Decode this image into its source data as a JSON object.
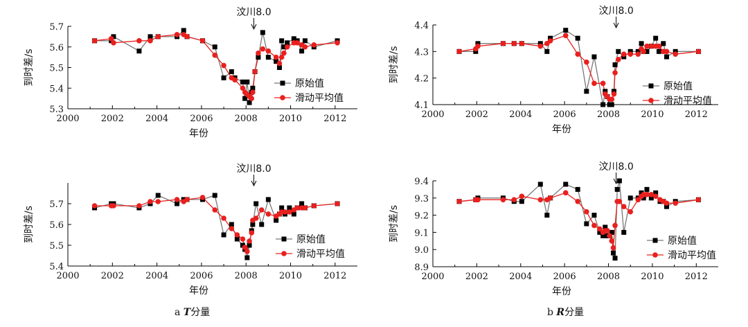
{
  "captions": {
    "a_prefix": "a ",
    "a_italic": "T",
    "a_suffix": "分量",
    "b_prefix": "b ",
    "b_italic": "R",
    "b_suffix": "分量"
  },
  "legend": {
    "raw": "原始值",
    "smooth": "滑动平均值"
  },
  "colors": {
    "raw": "#000000",
    "raw_line": "#777777",
    "smooth": "#e8201e"
  },
  "chart_data": [
    {
      "type": "line",
      "id": "T-top",
      "xlabel": "年份",
      "ylabel": "到时差/s",
      "xlim": [
        2000,
        2013
      ],
      "ylim": [
        5.3,
        5.7
      ],
      "xticks": [
        "2000",
        "2002",
        "2004",
        "2006",
        "2008",
        "2010",
        "2012"
      ],
      "yticks": [
        "5.3",
        "5.4",
        "5.5",
        "5.6",
        "5.7"
      ],
      "annotation": {
        "text": "汶川8.0",
        "x": 2008.35
      },
      "series": [
        {
          "name": "原始值",
          "x": [
            2001.2,
            2001.95,
            2002.05,
            2003.2,
            2003.7,
            2004.05,
            2004.9,
            2005.2,
            2005.35,
            2006.05,
            2006.6,
            2007.0,
            2007.35,
            2007.5,
            2007.85,
            2007.95,
            2008.05,
            2008.15,
            2008.25,
            2008.3,
            2008.4,
            2008.55,
            2008.75,
            2009.0,
            2009.35,
            2009.5,
            2009.6,
            2009.7,
            2009.85,
            2010.15,
            2010.3,
            2010.5,
            2010.65,
            2011.05,
            2012.1
          ],
          "y": [
            5.63,
            5.63,
            5.65,
            5.58,
            5.65,
            5.65,
            5.65,
            5.68,
            5.65,
            5.63,
            5.6,
            5.45,
            5.48,
            5.45,
            5.43,
            5.35,
            5.43,
            5.33,
            5.38,
            5.4,
            5.48,
            5.55,
            5.67,
            5.55,
            5.53,
            5.5,
            5.63,
            5.6,
            5.62,
            5.64,
            5.63,
            5.58,
            5.63,
            5.6,
            5.63
          ]
        },
        {
          "name": "滑动平均值",
          "x": [
            2001.2,
            2001.95,
            2002.05,
            2003.2,
            2003.7,
            2004.05,
            2004.9,
            2005.2,
            2005.35,
            2006.05,
            2006.6,
            2007.0,
            2007.35,
            2007.5,
            2007.85,
            2007.95,
            2008.05,
            2008.15,
            2008.25,
            2008.3,
            2008.4,
            2008.55,
            2008.75,
            2009.0,
            2009.35,
            2009.5,
            2009.6,
            2009.7,
            2009.85,
            2010.15,
            2010.3,
            2010.5,
            2010.65,
            2011.05,
            2012.1
          ],
          "y": [
            5.63,
            5.64,
            5.62,
            5.63,
            5.63,
            5.65,
            5.66,
            5.66,
            5.65,
            5.63,
            5.56,
            5.51,
            5.45,
            5.44,
            5.4,
            5.38,
            5.37,
            5.36,
            5.35,
            5.38,
            5.48,
            5.57,
            5.59,
            5.58,
            5.55,
            5.52,
            5.55,
            5.57,
            5.6,
            5.62,
            5.62,
            5.61,
            5.6,
            5.61,
            5.62
          ]
        }
      ]
    },
    {
      "type": "line",
      "id": "R-top",
      "xlabel": "年份",
      "ylabel": "到时差/s",
      "xlim": [
        2000,
        2013
      ],
      "ylim": [
        4.1,
        4.4
      ],
      "xticks": [
        "2000",
        "2002",
        "2004",
        "2006",
        "2008",
        "2010",
        "2012"
      ],
      "yticks": [
        "4.1",
        "4.2",
        "4.3",
        "4.4"
      ],
      "annotation": {
        "text": "汶川8.0",
        "x": 2008.35
      },
      "series": [
        {
          "name": "原始值",
          "x": [
            2001.2,
            2001.95,
            2002.05,
            2003.2,
            2003.7,
            2004.05,
            2004.9,
            2005.2,
            2005.35,
            2006.05,
            2006.6,
            2007.0,
            2007.35,
            2007.75,
            2007.85,
            2007.95,
            2008.05,
            2008.15,
            2008.25,
            2008.3,
            2008.45,
            2008.7,
            2009.0,
            2009.35,
            2009.5,
            2009.6,
            2009.75,
            2009.95,
            2010.15,
            2010.3,
            2010.5,
            2010.65,
            2011.05,
            2012.1
          ],
          "y": [
            4.3,
            4.3,
            4.33,
            4.33,
            4.33,
            4.33,
            4.33,
            4.3,
            4.35,
            4.38,
            4.35,
            4.15,
            4.28,
            4.1,
            4.15,
            4.13,
            4.1,
            4.1,
            4.15,
            4.25,
            4.3,
            4.28,
            4.3,
            4.3,
            4.33,
            4.3,
            4.3,
            4.32,
            4.35,
            4.3,
            4.33,
            4.28,
            4.3,
            4.3
          ]
        },
        {
          "name": "滑动平均值",
          "x": [
            2001.2,
            2001.95,
            2002.05,
            2003.2,
            2003.7,
            2004.05,
            2004.9,
            2005.2,
            2005.35,
            2006.05,
            2006.6,
            2007.0,
            2007.35,
            2007.75,
            2007.85,
            2007.95,
            2008.05,
            2008.15,
            2008.25,
            2008.3,
            2008.45,
            2008.7,
            2009.0,
            2009.35,
            2009.5,
            2009.6,
            2009.75,
            2009.95,
            2010.15,
            2010.3,
            2010.5,
            2010.65,
            2011.05,
            2012.1
          ],
          "y": [
            4.3,
            4.31,
            4.32,
            4.33,
            4.33,
            4.33,
            4.32,
            4.33,
            4.34,
            4.36,
            4.29,
            4.26,
            4.18,
            4.18,
            4.14,
            4.13,
            4.12,
            4.12,
            4.14,
            4.22,
            4.27,
            4.29,
            4.29,
            4.29,
            4.31,
            4.3,
            4.32,
            4.32,
            4.32,
            4.32,
            4.3,
            4.3,
            4.29,
            4.3
          ]
        }
      ]
    },
    {
      "type": "line",
      "id": "T-bottom",
      "xlabel": "年份",
      "ylabel": "到时差/s",
      "xlim": [
        2000,
        2013
      ],
      "ylim": [
        5.4,
        5.8
      ],
      "xticks": [
        "2000",
        "2002",
        "2004",
        "2006",
        "2008",
        "2010",
        "2012"
      ],
      "yticks": [
        "5.4",
        "5.5",
        "5.6",
        "5.7"
      ],
      "annotation": {
        "text": "汶川8.0",
        "x": 2008.35
      },
      "series": [
        {
          "name": "原始值",
          "x": [
            2001.2,
            2001.95,
            2002.05,
            2003.2,
            2003.7,
            2004.05,
            2004.9,
            2005.2,
            2005.35,
            2006.05,
            2006.6,
            2007.0,
            2007.35,
            2007.6,
            2007.85,
            2007.95,
            2008.05,
            2008.15,
            2008.25,
            2008.3,
            2008.45,
            2008.7,
            2009.0,
            2009.35,
            2009.5,
            2009.6,
            2009.75,
            2009.95,
            2010.15,
            2010.3,
            2010.5,
            2010.65,
            2011.05,
            2012.1
          ],
          "y": [
            5.68,
            5.7,
            5.7,
            5.68,
            5.7,
            5.74,
            5.7,
            5.72,
            5.72,
            5.72,
            5.74,
            5.55,
            5.6,
            5.53,
            5.5,
            5.48,
            5.44,
            5.5,
            5.57,
            5.6,
            5.7,
            5.6,
            5.72,
            5.62,
            5.65,
            5.68,
            5.65,
            5.68,
            5.65,
            5.68,
            5.7,
            5.68,
            5.69,
            5.7
          ]
        },
        {
          "name": "滑动平均值",
          "x": [
            2001.2,
            2001.95,
            2002.05,
            2003.2,
            2003.7,
            2004.05,
            2004.9,
            2005.2,
            2005.35,
            2006.05,
            2006.6,
            2007.0,
            2007.35,
            2007.6,
            2007.85,
            2007.95,
            2008.05,
            2008.15,
            2008.25,
            2008.3,
            2008.45,
            2008.7,
            2009.0,
            2009.35,
            2009.5,
            2009.6,
            2009.75,
            2009.95,
            2010.15,
            2010.3,
            2010.5,
            2010.65,
            2011.05,
            2012.1
          ],
          "y": [
            5.69,
            5.69,
            5.69,
            5.69,
            5.71,
            5.71,
            5.72,
            5.71,
            5.72,
            5.73,
            5.67,
            5.63,
            5.58,
            5.55,
            5.53,
            5.49,
            5.47,
            5.52,
            5.56,
            5.62,
            5.63,
            5.67,
            5.65,
            5.64,
            5.65,
            5.66,
            5.66,
            5.66,
            5.67,
            5.68,
            5.68,
            5.68,
            5.69,
            5.7
          ]
        }
      ]
    },
    {
      "type": "line",
      "id": "R-bottom",
      "xlabel": "年份",
      "ylabel": "到时差/s",
      "xlim": [
        2000,
        2013
      ],
      "ylim": [
        8.9,
        9.4
      ],
      "xticks": [
        "2000",
        "2002",
        "2004",
        "2006",
        "2008",
        "2010",
        "2012"
      ],
      "yticks": [
        "8.9",
        "9.0",
        "9.1",
        "9.2",
        "9.3",
        "9.4"
      ],
      "annotation": {
        "text": "汶川8.0",
        "x": 2008.35
      },
      "series": [
        {
          "name": "原始值",
          "x": [
            2001.2,
            2001.95,
            2002.05,
            2003.2,
            2003.7,
            2004.05,
            2004.9,
            2005.2,
            2005.35,
            2006.05,
            2006.6,
            2007.0,
            2007.35,
            2007.6,
            2007.75,
            2007.85,
            2007.95,
            2008.05,
            2008.15,
            2008.22,
            2008.3,
            2008.4,
            2008.5,
            2008.7,
            2009.0,
            2009.35,
            2009.5,
            2009.6,
            2009.75,
            2009.95,
            2010.15,
            2010.35,
            2010.5,
            2010.65,
            2011.05,
            2012.1
          ],
          "y": [
            9.28,
            9.29,
            9.3,
            9.3,
            9.28,
            9.28,
            9.38,
            9.2,
            9.3,
            9.38,
            9.35,
            9.15,
            9.2,
            9.1,
            9.08,
            9.13,
            9.08,
            9.08,
            9.1,
            8.98,
            8.95,
            9.35,
            9.4,
            9.1,
            9.3,
            9.3,
            9.33,
            9.3,
            9.35,
            9.3,
            9.33,
            9.28,
            9.28,
            9.25,
            9.28,
            9.29
          ]
        },
        {
          "name": "滑动平均值",
          "x": [
            2001.2,
            2001.95,
            2002.05,
            2003.2,
            2003.7,
            2004.05,
            2004.9,
            2005.2,
            2005.35,
            2006.05,
            2006.6,
            2007.0,
            2007.35,
            2007.6,
            2007.75,
            2007.85,
            2007.95,
            2008.05,
            2008.15,
            2008.22,
            2008.3,
            2008.4,
            2008.5,
            2008.7,
            2009.0,
            2009.35,
            2009.5,
            2009.6,
            2009.75,
            2009.95,
            2010.15,
            2010.35,
            2010.5,
            2010.65,
            2011.05,
            2012.1
          ],
          "y": [
            9.28,
            9.29,
            9.29,
            9.29,
            9.29,
            9.31,
            9.29,
            9.29,
            9.3,
            9.33,
            9.28,
            9.22,
            9.14,
            9.12,
            9.1,
            9.11,
            9.11,
            9.08,
            9.05,
            9.01,
            9.14,
            9.28,
            9.28,
            9.25,
            9.22,
            9.29,
            9.31,
            9.32,
            9.32,
            9.32,
            9.31,
            9.29,
            9.28,
            9.27,
            9.27,
            9.29
          ]
        }
      ]
    }
  ]
}
